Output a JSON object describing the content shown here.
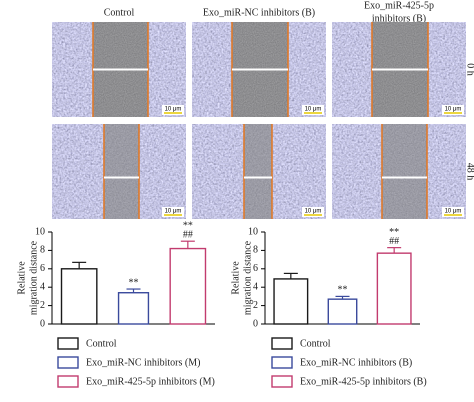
{
  "figure": {
    "columns": [
      [
        "Control"
      ],
      [
        "Exo_miR-NC inhibitors (B)"
      ],
      [
        "Exo_miR-425-5p",
        "inhibitors (B)"
      ]
    ],
    "rows": [
      "0 h",
      "48 h"
    ],
    "scale_bar": "10 μm"
  },
  "chart_data": [
    {
      "type": "bar",
      "ylabel": [
        "Relative",
        "migration distance"
      ],
      "categories": [
        "Control",
        "Exo_miR-NC inhibitors (M)",
        "Exo_miR-425-5p inhibitors (M)"
      ],
      "values": [
        6.0,
        3.4,
        8.2
      ],
      "errors": [
        0.7,
        0.4,
        0.8
      ],
      "colors": [
        "#1a1a1a",
        "#3a4a9c",
        "#c23b6e"
      ],
      "annotations": [
        null,
        [
          "**"
        ],
        [
          "**",
          "##"
        ]
      ],
      "ylim": [
        0,
        10
      ],
      "yticks": [
        0,
        2,
        4,
        6,
        8,
        10
      ]
    },
    {
      "type": "bar",
      "ylabel": [
        "Relative",
        "migration distance"
      ],
      "categories": [
        "Control",
        "Exo_miR-NC inhibitors (B)",
        "Exo_miR-425-5p inhibitors (B)"
      ],
      "values": [
        4.9,
        2.7,
        7.7
      ],
      "errors": [
        0.6,
        0.3,
        0.6
      ],
      "colors": [
        "#1a1a1a",
        "#3a4a9c",
        "#c23b6e"
      ],
      "annotations": [
        null,
        [
          "**"
        ],
        [
          "**",
          "##"
        ]
      ],
      "ylim": [
        0,
        10
      ],
      "yticks": [
        0,
        2,
        4,
        6,
        8,
        10
      ]
    }
  ]
}
